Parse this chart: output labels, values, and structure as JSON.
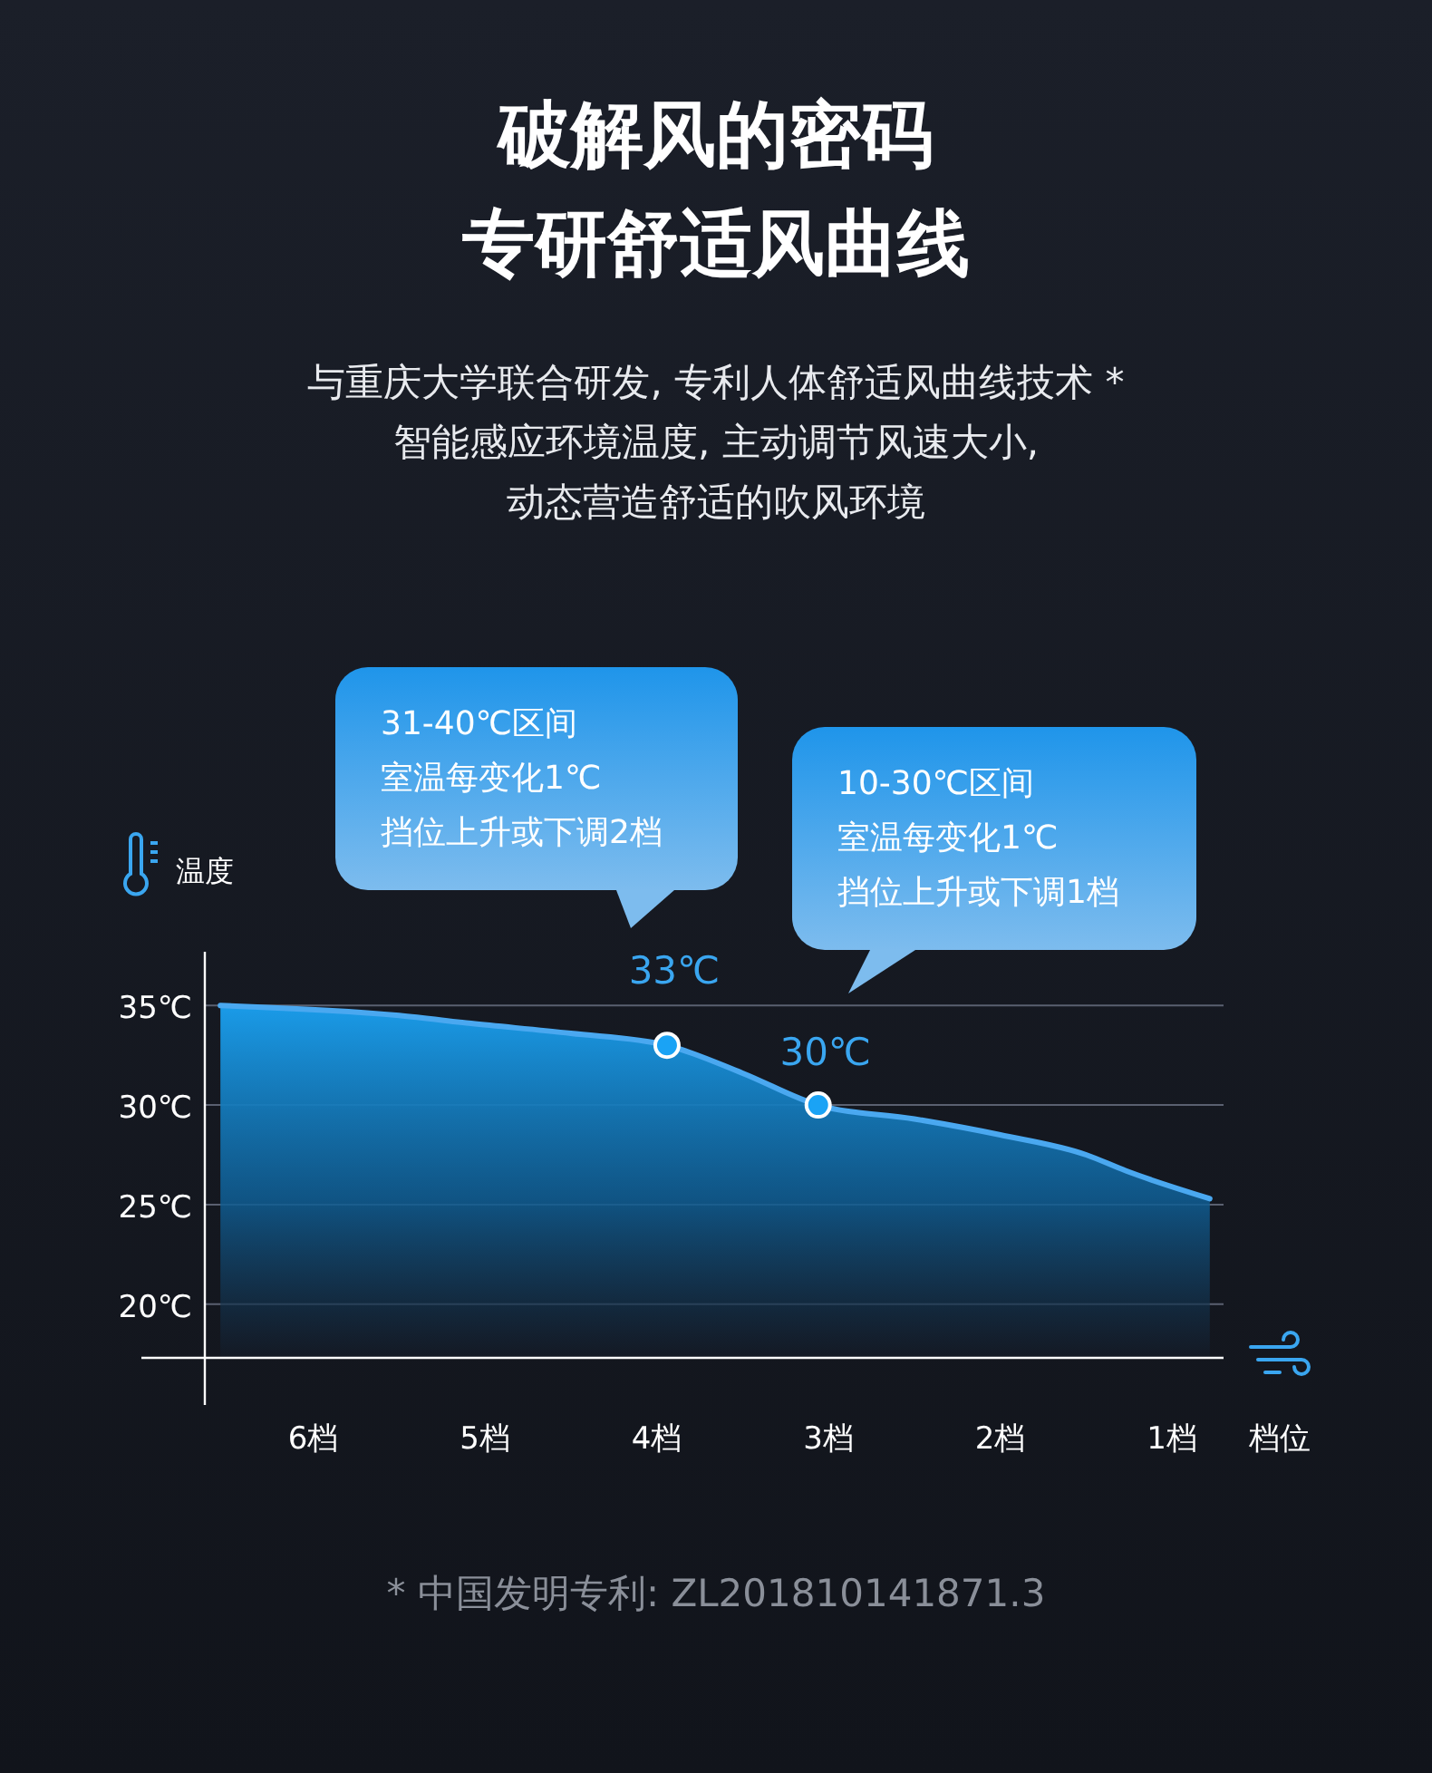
{
  "chart_data": {
    "type": "area",
    "title": "破解风的密码",
    "subtitle": "专研舒适风曲线",
    "ylabel": "温度",
    "xlabel": "档位",
    "xlim": [
      7,
      0.7
    ],
    "xticks": [
      {
        "value": 6,
        "label": "6档"
      },
      {
        "value": 5,
        "label": "5档"
      },
      {
        "value": 4,
        "label": "4档"
      },
      {
        "value": 3,
        "label": "3档"
      },
      {
        "value": 2,
        "label": "2档"
      },
      {
        "value": 1,
        "label": "1档"
      }
    ],
    "ylim": [
      17.3,
      37.7
    ],
    "yticks": [
      {
        "value": 20,
        "label": "20℃"
      },
      {
        "value": 25,
        "label": "25℃"
      },
      {
        "value": 30,
        "label": "30℃"
      },
      {
        "value": 35,
        "label": "35℃"
      }
    ],
    "grid": "y",
    "series": [
      {
        "color": "#4aa8f0",
        "x": [
          6.54,
          5.5,
          5.08,
          4.5,
          3.94,
          3.5,
          3.06,
          2.5,
          2,
          1.5,
          1.27,
          0.78
        ],
        "values": [
          35,
          34.5,
          34.1,
          33.6,
          33,
          31.6,
          30,
          29.3,
          28.5,
          27.5,
          26.7,
          25.3
        ]
      },
      {
        "type": "scatter",
        "color": "#1aa3f5",
        "marker": "circle",
        "x": [
          3.94,
          3.06
        ],
        "values": [
          33,
          30
        ],
        "value_labels": [
          "33℃",
          "30℃"
        ]
      }
    ],
    "annotations": [
      "与重庆大学联合研发, 专利人体舒适风曲线技术 *",
      "智能感应环境温度, 主动调节风速大小,",
      "动态营造舒适的吹风环境",
      "31-40℃区间",
      "室温每变化1℃",
      "挡位上升或下调2档",
      "10-30℃区间",
      "室温每变化1℃",
      "挡位上升或下调1档",
      "* 中国发明专利: ZL201810141871.3"
    ]
  }
}
